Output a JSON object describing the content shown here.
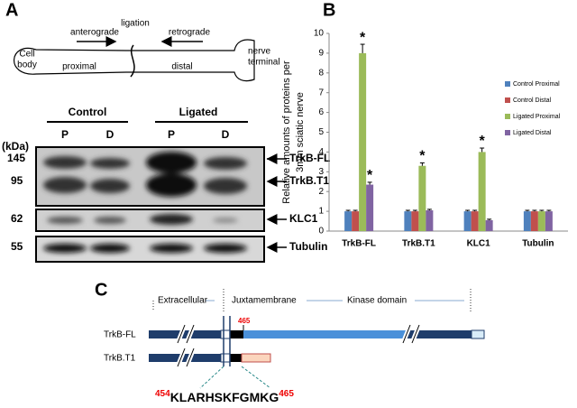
{
  "panel_a": {
    "label": "A",
    "schematic": {
      "cell_body": [
        "Cell",
        "body"
      ],
      "anterograde": "anterograde",
      "ligation": "ligation",
      "retrograde": "retrograde",
      "nerve_terminal": [
        "nerve",
        "terminal"
      ],
      "proximal": "proximal",
      "distal": "distal"
    },
    "blot": {
      "groups": [
        "Control",
        "Ligated"
      ],
      "lanes": [
        "P",
        "D",
        "P",
        "D"
      ],
      "kda_label": "(kDa)",
      "markers": [
        "145",
        "95",
        "62",
        "55"
      ],
      "bands": [
        "TrkB-FL",
        "TrkB.T1",
        "KLC1",
        "Tubulin"
      ]
    }
  },
  "panel_b": {
    "label": "B"
  },
  "chart_data": {
    "type": "bar",
    "y_label": [
      "Relative amounts of proteins per",
      "3mm sciatic nerve"
    ],
    "categories": [
      "TrkB-FL",
      "TrkB.T1",
      "KLC1",
      "Tubulin"
    ],
    "series": [
      {
        "name": "Control Proximal",
        "color": "#4f81bd",
        "values": [
          1,
          1,
          1,
          1
        ],
        "errors": [
          0.05,
          0.05,
          0.05,
          0.05
        ],
        "annotations": [
          null,
          null,
          null,
          null
        ]
      },
      {
        "name": "Control Distal",
        "color": "#c0504d",
        "values": [
          1,
          1,
          1,
          1
        ],
        "errors": [
          0.05,
          0.05,
          0.05,
          0.05
        ],
        "annotations": [
          null,
          null,
          null,
          null
        ]
      },
      {
        "name": "Ligated Proximal",
        "color": "#9bbb59",
        "values": [
          9.0,
          3.3,
          4.0,
          1.0
        ],
        "errors": [
          0.45,
          0.15,
          0.2,
          0.05
        ],
        "annotations": [
          "*",
          "*",
          "*",
          null
        ]
      },
      {
        "name": "Ligated Distal",
        "color": "#8064a2",
        "values": [
          2.35,
          1.05,
          0.55,
          1.0
        ],
        "errors": [
          0.12,
          0.05,
          0.05,
          0.05
        ],
        "annotations": [
          "*",
          null,
          null,
          null
        ]
      }
    ],
    "ylim": [
      0,
      10
    ],
    "yticks": [
      0,
      1,
      2,
      3,
      4,
      5,
      6,
      7,
      8,
      9,
      10
    ],
    "legend": "right"
  },
  "panel_c": {
    "label": "C",
    "domains": [
      "Extracellular",
      "Juxtamembrane",
      "Kinase domain"
    ],
    "isoforms": [
      "TrkB-FL",
      "TrkB.T1"
    ],
    "site_label": "465",
    "sequence": {
      "start": "454",
      "residues": "KLARHSKFGMKG",
      "end": "465"
    }
  }
}
